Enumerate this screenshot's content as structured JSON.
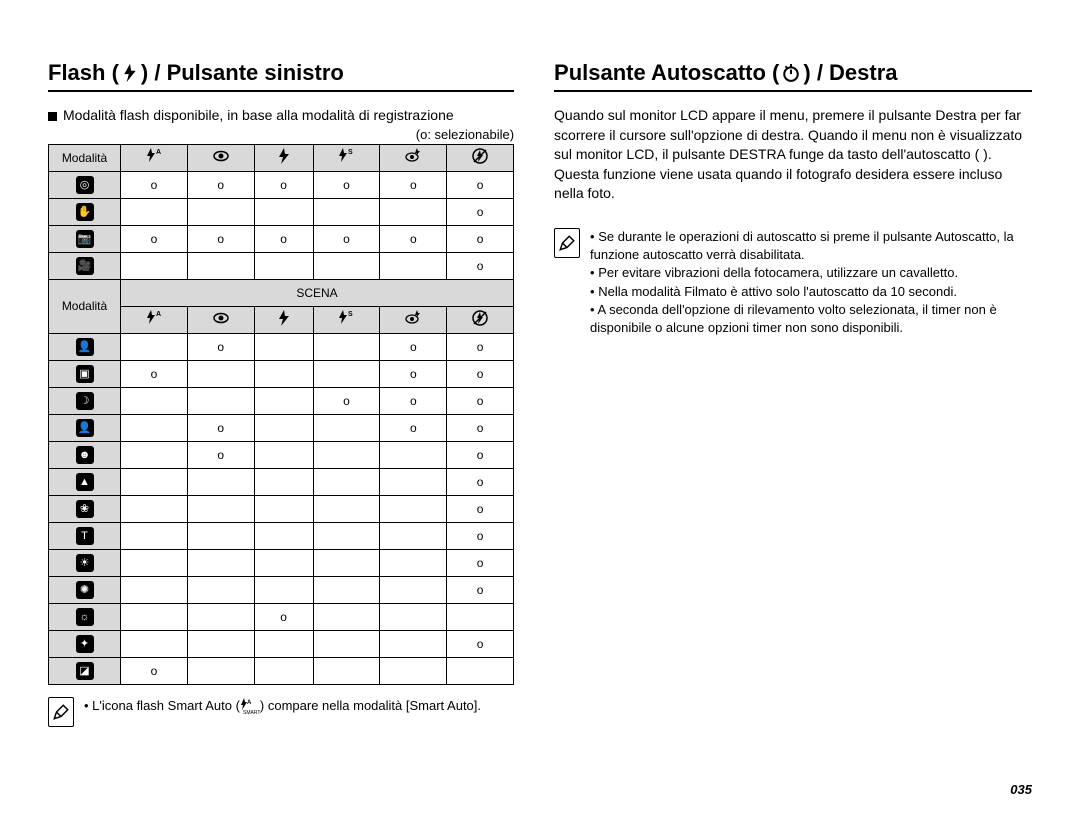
{
  "left": {
    "title_prefix": "Flash (",
    "title_suffix": ") / Pulsante sinistro",
    "intro": "Modalità flash disponibile, in base alla modalità di registrazione",
    "legend": "(o: selezionabile)",
    "header_mode": "Modalità",
    "scena": "SCENA",
    "cols_svg": [
      "flash-a",
      "eye",
      "flash",
      "flash-s",
      "eye-flash",
      "no-flash"
    ],
    "table1_rows": [
      {
        "icon": "camera-auto",
        "vals": [
          "o",
          "o",
          "o",
          "o",
          "o",
          "o"
        ]
      },
      {
        "icon": "hand",
        "vals": [
          "",
          "",
          "",
          "",
          "",
          "o"
        ]
      },
      {
        "icon": "camera-p",
        "vals": [
          "o",
          "o",
          "o",
          "o",
          "o",
          "o"
        ]
      },
      {
        "icon": "video",
        "vals": [
          "",
          "",
          "",
          "",
          "",
          "o"
        ]
      }
    ],
    "table2_rows": [
      {
        "icon": "portrait",
        "vals": [
          "",
          "o",
          "",
          "",
          "o",
          "o"
        ]
      },
      {
        "icon": "frame",
        "vals": [
          "o",
          "",
          "",
          "",
          "o",
          "o"
        ]
      },
      {
        "icon": "night",
        "vals": [
          "",
          "",
          "",
          "o",
          "o",
          "o"
        ]
      },
      {
        "icon": "portrait2",
        "vals": [
          "",
          "o",
          "",
          "",
          "o",
          "o"
        ]
      },
      {
        "icon": "children",
        "vals": [
          "",
          "o",
          "",
          "",
          "",
          "o"
        ]
      },
      {
        "icon": "landscape",
        "vals": [
          "",
          "",
          "",
          "",
          "",
          "o"
        ]
      },
      {
        "icon": "closeup",
        "vals": [
          "",
          "",
          "",
          "",
          "",
          "o"
        ]
      },
      {
        "icon": "text",
        "vals": [
          "",
          "",
          "",
          "",
          "",
          "o"
        ]
      },
      {
        "icon": "sunset",
        "vals": [
          "",
          "",
          "",
          "",
          "",
          "o"
        ]
      },
      {
        "icon": "dawn",
        "vals": [
          "",
          "",
          "",
          "",
          "",
          "o"
        ]
      },
      {
        "icon": "backlight",
        "vals": [
          "",
          "",
          "o",
          "",
          "",
          ""
        ]
      },
      {
        "icon": "firework",
        "vals": [
          "",
          "",
          "",
          "",
          "",
          "o"
        ]
      },
      {
        "icon": "beach",
        "vals": [
          "o",
          "",
          "",
          "",
          "",
          ""
        ]
      }
    ],
    "note_a": "L'icona flash Smart Auto (",
    "note_b": ") compare nella modalità [Smart Auto]."
  },
  "right": {
    "title_prefix": "Pulsante Autoscatto (",
    "title_suffix": ") / Destra",
    "para": "Quando sul monitor LCD appare il menu, premere il pulsante Destra per far scorrere il cursore sull'opzione di destra. Quando il menu non è visualizzato sul monitor LCD, il pulsante DESTRA funge da tasto dell'autoscatto (      ). Questa funzione viene usata quando il fotografo desidera essere incluso nella foto.",
    "notes": [
      "Se durante le operazioni di autoscatto si preme il pulsante Autoscatto, la funzione autoscatto verrà disabilitata.",
      "Per evitare vibrazioni della fotocamera, utilizzare un cavalletto.",
      "Nella modalità Filmato è attivo solo l'autoscatto da 10 secondi.",
      "A seconda dell'opzione di rilevamento volto selezionata, il timer non è disponibile o alcune opzioni timer non sono disponibili."
    ]
  },
  "page_number": "035"
}
